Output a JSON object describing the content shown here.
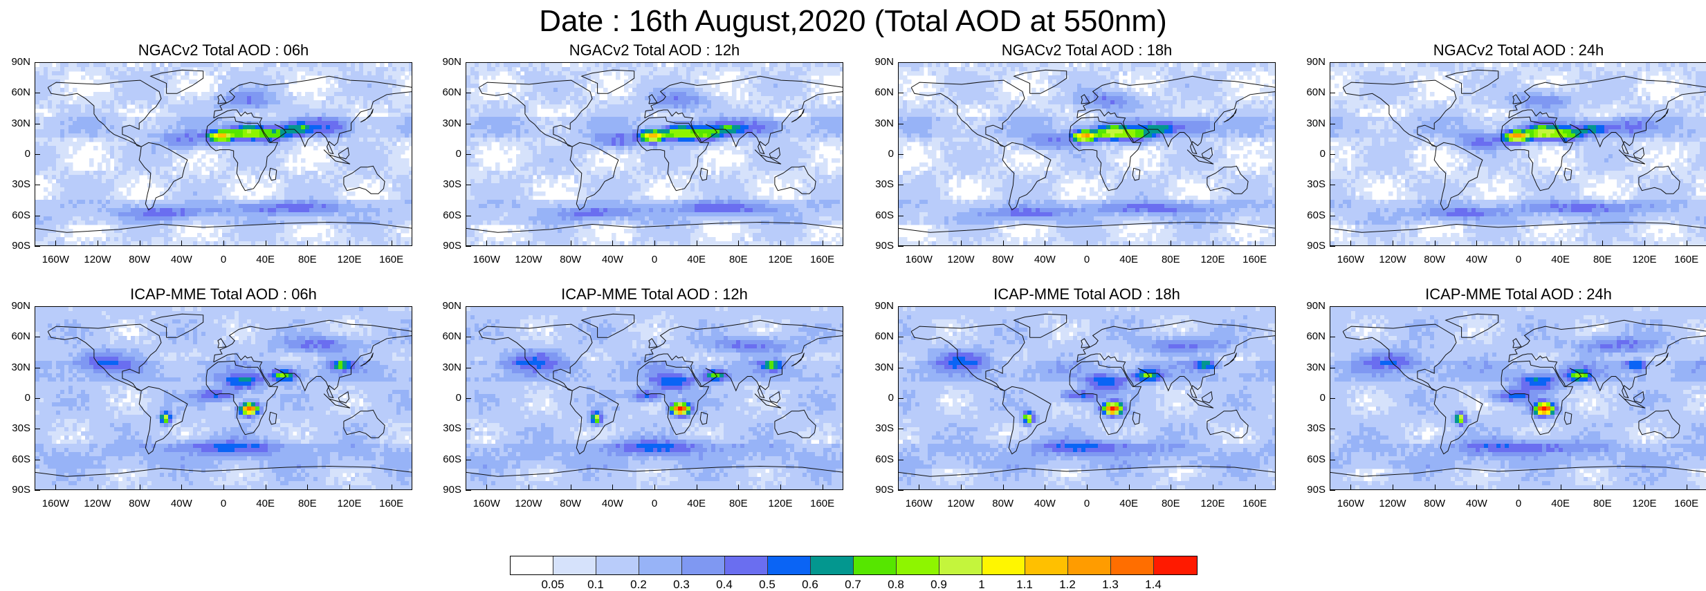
{
  "title": "Date : 16th August,2020 (Total AOD at 550nm)",
  "lat_labels": [
    "90N",
    "60N",
    "30N",
    "0",
    "30S",
    "60S",
    "90S"
  ],
  "lon_labels": [
    "160W",
    "120W",
    "80W",
    "40W",
    "0",
    "40E",
    "80E",
    "120E",
    "160E"
  ],
  "lon_values": [
    -160,
    -120,
    -80,
    -40,
    0,
    40,
    80,
    120,
    160
  ],
  "lat_values": [
    90,
    60,
    30,
    0,
    -30,
    -60,
    -90
  ],
  "panels": [
    {
      "title": "NGACv2 Total AOD : 06h",
      "model": "NGACv2",
      "hour": "06h"
    },
    {
      "title": "NGACv2 Total AOD : 12h",
      "model": "NGACv2",
      "hour": "12h"
    },
    {
      "title": "NGACv2 Total AOD : 18h",
      "model": "NGACv2",
      "hour": "18h"
    },
    {
      "title": "NGACv2 Total AOD : 24h",
      "model": "NGACv2",
      "hour": "24h"
    },
    {
      "title": "ICAP-MME Total AOD : 06h",
      "model": "ICAP-MME",
      "hour": "06h"
    },
    {
      "title": "ICAP-MME Total AOD : 12h",
      "model": "ICAP-MME",
      "hour": "12h"
    },
    {
      "title": "ICAP-MME Total AOD : 18h",
      "model": "ICAP-MME",
      "hour": "18h"
    },
    {
      "title": "ICAP-MME Total AOD : 24h",
      "model": "ICAP-MME",
      "hour": "24h"
    }
  ],
  "colorbar": {
    "labels": [
      "0.05",
      "0.1",
      "0.2",
      "0.3",
      "0.4",
      "0.5",
      "0.6",
      "0.7",
      "0.8",
      "0.9",
      "1",
      "1.1",
      "1.2",
      "1.3",
      "1.4"
    ],
    "colors": [
      "#ffffff",
      "#d6e2fb",
      "#b9ccfa",
      "#97b3f7",
      "#7f98f2",
      "#6a6ef0",
      "#0a64f5",
      "#03978f",
      "#56e600",
      "#8ef500",
      "#c4f53c",
      "#fff600",
      "#ffc000",
      "#ff9c00",
      "#ff6e00",
      "#ff1a00"
    ]
  }
}
